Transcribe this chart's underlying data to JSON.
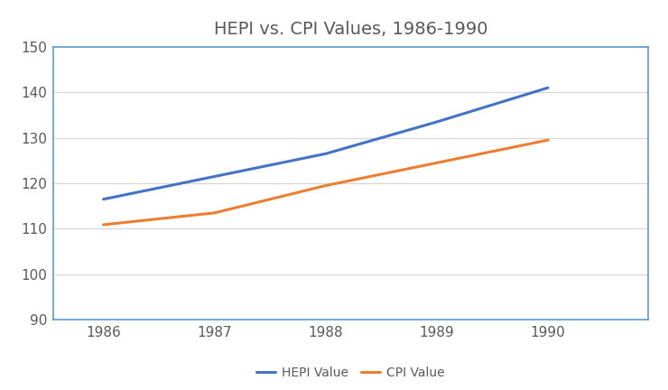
{
  "title": "HEPI vs. CPI Values, 1986-1990",
  "years": [
    1986,
    1987,
    1988,
    1989,
    1990
  ],
  "hepi_values": [
    116.5,
    121.5,
    126.5,
    133.5,
    141.0
  ],
  "cpi_values": [
    110.9,
    113.5,
    119.5,
    124.5,
    129.5
  ],
  "hepi_color": "#4472C4",
  "cpi_color": "#ED7D31",
  "hepi_label": "HEPI Value",
  "cpi_label": "CPI Value",
  "ylim": [
    90,
    150
  ],
  "yticks": [
    90,
    100,
    110,
    120,
    130,
    140,
    150
  ],
  "xlim_left": 1985.55,
  "xlim_right": 1990.9,
  "xticks": [
    1986,
    1987,
    1988,
    1989,
    1990
  ],
  "line_width": 2.2,
  "title_fontsize": 14,
  "tick_fontsize": 11,
  "legend_fontsize": 10,
  "title_color": "#595959",
  "tick_color": "#595959",
  "background_color": "#ffffff",
  "plot_bg_color": "#ffffff",
  "spine_color": "#5B9BD5",
  "grid_color": "#d4d4d4"
}
